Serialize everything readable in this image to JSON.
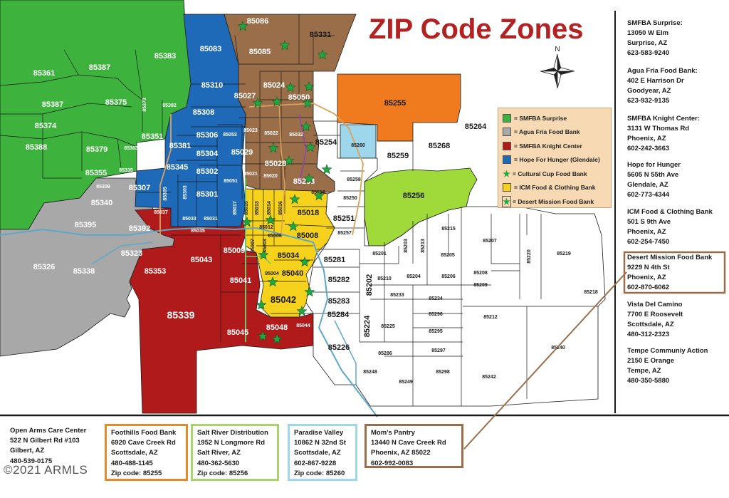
{
  "title": "ZIP Code Zones",
  "compass_label": "N",
  "colors": {
    "green": "#3db33d",
    "gray": "#a8a8a8",
    "red": "#b01a1a",
    "blue": "#1e6ab8",
    "brown": "#9b6e4a",
    "yellow": "#f6d21c",
    "orange": "#f07b1e",
    "light_blue": "#9ed7ec",
    "lime": "#9fd93a",
    "star": "#1fa83f"
  },
  "legend": [
    {
      "label": "= SMFBA Surprise",
      "swatch": "green",
      "icon": "square-icon"
    },
    {
      "label": "= Agua Fria Food Bank",
      "swatch": "gray",
      "icon": "square-icon"
    },
    {
      "label": "= SMFBA Knight Center",
      "swatch": "red",
      "icon": "square-icon"
    },
    {
      "label": "= Hope For Hunger (Glendale)",
      "swatch": "blue",
      "icon": "square-icon"
    },
    {
      "label": "= Cultural Cup Food Bank",
      "swatch": "star",
      "icon": "star-icon"
    },
    {
      "label": "= ICM Food & Clothing Bank",
      "swatch": "yellow",
      "icon": "square-icon"
    },
    {
      "label": "= Desert Mission Food Bank",
      "swatch": "star",
      "icon": "star-square-icon"
    }
  ],
  "sidebar": [
    {
      "name": "SMFBA Surprise:",
      "lines": [
        "13050 W Elm",
        "Surprise, AZ",
        "623-583-9240"
      ]
    },
    {
      "name": "Agua Fria Food Bank:",
      "lines": [
        "402 E Harrison Dr",
        "Goodyear, AZ",
        "623-932-9135"
      ]
    },
    {
      "name": "SMFBA Knight Center:",
      "lines": [
        "3131 W Thomas Rd",
        "Phoenix, AZ",
        "602-242-3663"
      ]
    },
    {
      "name": "Hope for Hunger",
      "lines": [
        "5605 N 55th Ave",
        "Glendale, AZ",
        "602-773-4344"
      ]
    },
    {
      "name": "ICM Food & Clothing Bank",
      "lines": [
        "501 S 9th Ave",
        "Phoenix, AZ",
        "602-254-7450"
      ]
    },
    {
      "name": "Desert Mission Food Bank",
      "lines": [
        "9229 N 4th St",
        "Phoenix, AZ",
        "602-870-6062"
      ]
    },
    {
      "name": "Vista Del Camino",
      "lines": [
        "7700 E Roosevelt",
        "Scottsdale, AZ",
        "480-312-2323"
      ]
    },
    {
      "name": "Tempe Communiy Action",
      "lines": [
        "2150 E Orange",
        "Tempe, AZ",
        "480-350-5880"
      ]
    }
  ],
  "bottom": [
    {
      "name": "Open Arms Care Center",
      "lines": [
        "522 N Gilbert Rd #103",
        "Gilbert, AZ",
        "480-539-0175"
      ]
    },
    {
      "name": "Foothills Food Bank",
      "lines": [
        "6920 Cave Creek Rd",
        "Scottsdale, AZ",
        "480-488-1145",
        "Zip code: 85255"
      ]
    },
    {
      "name": "Salt River Distribution",
      "lines": [
        "1952 N Longmore Rd",
        "Salt River, AZ",
        "480-362-5630",
        "Zip code: 85256"
      ]
    },
    {
      "name": "Paradise Valley",
      "lines": [
        "10862 N 32nd St",
        "Scottsdale, AZ",
        "602-867-9228",
        "Zip code: 85260"
      ]
    },
    {
      "name": "Mom's Pantry",
      "lines": [
        "13440 N Cave Creek Rd",
        "Phoenix, AZ 85022",
        "602-992-0083"
      ]
    }
  ],
  "copyright": "©2021 ARMLS",
  "zips": {
    "z85086": "85086",
    "z85331": "85331",
    "z85085": "85085",
    "z85083": "85083",
    "z85383": "85383",
    "z85361": "85361",
    "z85387a": "85387",
    "z85387b": "85387",
    "z85375": "85375",
    "z85373": "85373",
    "z85374": "85374",
    "z85388": "85388",
    "z85379": "85379",
    "z85363": "85363",
    "z85355": "85355",
    "z85335": "85335",
    "z85309": "85309",
    "z85340": "85340",
    "z85395": "85395",
    "z85392": "85392",
    "z85326": "85326",
    "z85338": "85338",
    "z85323": "85323",
    "z85353": "85353",
    "z85339": "85339",
    "z85310": "85310",
    "z85308": "85308",
    "z85382": "85382",
    "z85351": "85351",
    "z85306": "85306",
    "z85381": "85381",
    "z85304": "85304",
    "z85345": "85345",
    "z85302": "85302",
    "z85301": "85301",
    "z85307": "85307",
    "z85305": "85305",
    "z85303": "85303",
    "z85033": "85033",
    "z85031": "85031",
    "z85037": "85037",
    "z85035": "85035",
    "z85043": "85043",
    "z85009": "85009",
    "z85041": "85041",
    "z85045": "85045",
    "z85048": "85048",
    "z85044": "85044",
    "z85024": "85024",
    "z85027": "85027",
    "z85050": "85050",
    "z85053": "85053",
    "z85023": "85023",
    "z85022": "85022",
    "z85032": "85032",
    "z85029": "85029",
    "z85028": "85028",
    "z85021": "85021",
    "z85020": "85020",
    "z85051": "85051",
    "z85253": "85253",
    "z85018": "85018",
    "z85017": "85017",
    "z85015": "85015",
    "z85013": "85013",
    "z85014": "85014",
    "z85016": "85016",
    "z85012": "85012",
    "z85008": "85008",
    "z85006": "85006",
    "z85007": "85007",
    "z85003": "85003",
    "z85034": "85034",
    "z85040": "85040",
    "z85004": "85004",
    "z85042": "85042",
    "z85255": "85255",
    "z85264": "85264",
    "z85254": "85254",
    "z85260": "85260",
    "z85259": "85259",
    "z85268": "85268",
    "z85258": "85258",
    "z85256": "85256",
    "z85250": "85250",
    "z85251": "85251",
    "z85257": "85257",
    "z85281": "85281",
    "z85282": "85282",
    "z85283": "85283",
    "z85284": "85284",
    "z85226": "85226",
    "z85224": "85224",
    "z85202": "85202",
    "z85201": "85201",
    "z85203": "85203",
    "z85213": "85213",
    "z85215": "85215",
    "z85207": "85207",
    "z85220": "85220",
    "z85219": "85219",
    "z85205": "85205",
    "z85204": "85204",
    "z85210": "85210",
    "z85206": "85206",
    "z85208": "85208",
    "z85209": "85209",
    "z85218": "85218",
    "z85233": "85233",
    "z85234": "85234",
    "z85296": "85296",
    "z85212": "85212",
    "z85225": "85225",
    "z85295": "85295",
    "z85240": "85240",
    "z85286": "85286",
    "z85297": "85297",
    "z85248": "85248",
    "z85249": "85249",
    "z85298": "85298",
    "z85242": "85242"
  }
}
